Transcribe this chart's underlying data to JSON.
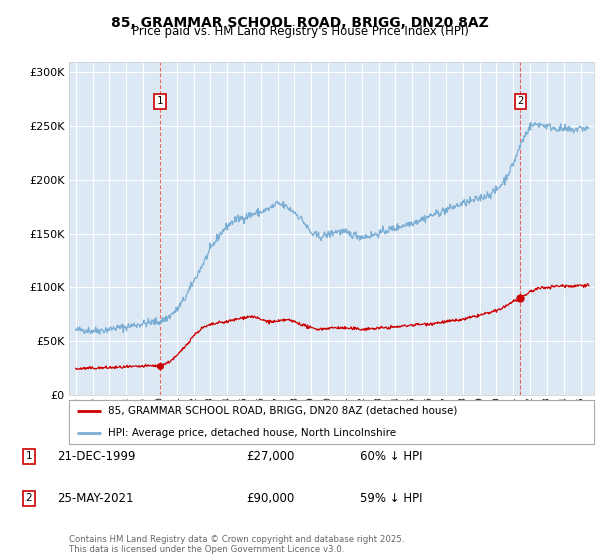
{
  "title": "85, GRAMMAR SCHOOL ROAD, BRIGG, DN20 8AZ",
  "subtitle": "Price paid vs. HM Land Registry's House Price Index (HPI)",
  "background_color": "#dce9f5",
  "plot_bg_color": "#dce9f5",
  "red_line_color": "#cc0000",
  "blue_line_color": "#7aadd4",
  "grid_color": "#ffffff",
  "marker1_date_label": "21-DEC-1999",
  "marker1_price": 27000,
  "marker1_x": 2000.0,
  "marker1_pct": "60% ↓ HPI",
  "marker2_date_label": "25-MAY-2021",
  "marker2_price": 90000,
  "marker2_x": 2021.42,
  "marker2_pct": "59% ↓ HPI",
  "ylim": [
    0,
    310000
  ],
  "xlim": [
    1994.6,
    2025.8
  ],
  "footer": "Contains HM Land Registry data © Crown copyright and database right 2025.\nThis data is licensed under the Open Government Licence v3.0.",
  "legend_label_red": "85, GRAMMAR SCHOOL ROAD, BRIGG, DN20 8AZ (detached house)",
  "legend_label_blue": "HPI: Average price, detached house, North Lincolnshire",
  "hpi_years": [
    1995.0,
    1995.5,
    1996.0,
    1996.5,
    1997.0,
    1997.5,
    1998.0,
    1998.5,
    1999.0,
    1999.5,
    2000.0,
    2000.5,
    2001.0,
    2001.5,
    2002.0,
    2002.5,
    2003.0,
    2003.5,
    2004.0,
    2004.5,
    2005.0,
    2005.5,
    2006.0,
    2006.5,
    2007.0,
    2007.5,
    2008.0,
    2008.5,
    2009.0,
    2009.5,
    2010.0,
    2010.5,
    2011.0,
    2011.5,
    2012.0,
    2012.5,
    2013.0,
    2013.5,
    2014.0,
    2014.5,
    2015.0,
    2015.5,
    2016.0,
    2016.5,
    2017.0,
    2017.5,
    2018.0,
    2018.5,
    2019.0,
    2019.5,
    2020.0,
    2020.5,
    2021.0,
    2021.5,
    2022.0,
    2022.5,
    2023.0,
    2023.5,
    2024.0,
    2024.5,
    2025.0
  ],
  "hpi_values": [
    60000,
    60500,
    59500,
    60000,
    61000,
    62500,
    63000,
    65000,
    66000,
    67500,
    68000,
    72000,
    79000,
    90000,
    105000,
    120000,
    135000,
    148000,
    157000,
    163000,
    165000,
    168000,
    170000,
    173000,
    178000,
    175000,
    170000,
    162000,
    150000,
    147000,
    149000,
    152000,
    151000,
    149000,
    147000,
    148000,
    150000,
    153000,
    155000,
    158000,
    160000,
    163000,
    166000,
    169000,
    172000,
    175000,
    178000,
    180000,
    183000,
    186000,
    190000,
    200000,
    215000,
    235000,
    250000,
    252000,
    250000,
    248000,
    247000,
    246000,
    248000
  ],
  "red_years": [
    1995.0,
    1995.5,
    1996.0,
    1996.5,
    1997.0,
    1997.5,
    1998.0,
    1998.5,
    1999.0,
    1999.5,
    2000.0,
    2000.5,
    2001.0,
    2001.5,
    2002.0,
    2002.5,
    2003.0,
    2003.5,
    2004.0,
    2004.5,
    2005.0,
    2005.5,
    2006.0,
    2006.5,
    2007.0,
    2007.5,
    2008.0,
    2008.5,
    2009.0,
    2009.5,
    2010.0,
    2010.5,
    2011.0,
    2011.5,
    2012.0,
    2012.5,
    2013.0,
    2013.5,
    2014.0,
    2014.5,
    2015.0,
    2015.5,
    2016.0,
    2016.5,
    2017.0,
    2017.5,
    2018.0,
    2018.5,
    2019.0,
    2019.5,
    2020.0,
    2020.5,
    2021.0,
    2021.5,
    2022.0,
    2022.5,
    2023.0,
    2023.5,
    2024.0,
    2024.5,
    2025.0
  ],
  "red_values": [
    24000,
    24500,
    24800,
    25000,
    25200,
    25500,
    25800,
    26000,
    26500,
    27000,
    27000,
    30000,
    36000,
    45000,
    55000,
    62000,
    65000,
    67000,
    68000,
    70000,
    72000,
    73000,
    70000,
    68000,
    68000,
    70000,
    68000,
    65000,
    62000,
    61000,
    62000,
    62500,
    62000,
    61500,
    61000,
    61500,
    62000,
    62500,
    63000,
    64000,
    65000,
    65500,
    66000,
    67000,
    68000,
    69000,
    70000,
    72000,
    74000,
    76000,
    78000,
    82000,
    87000,
    90000,
    96000,
    99000,
    100000,
    101000,
    101500,
    101000,
    102000
  ]
}
